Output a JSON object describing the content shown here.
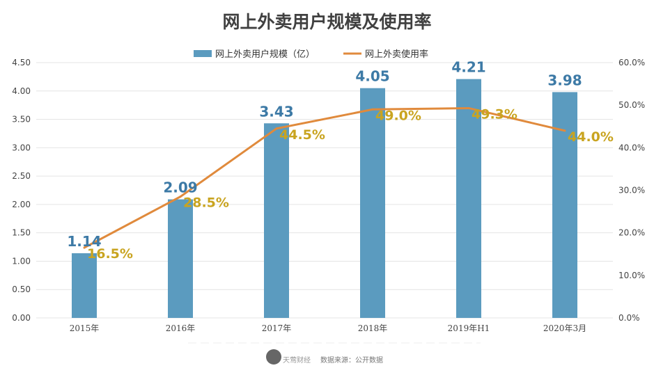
{
  "chart_data": {
    "type": "bar+line",
    "title": "网上外卖用户规模及使用率",
    "categories": [
      "2015年",
      "2016年",
      "2017年",
      "2018年",
      "2019年H1",
      "2020年3月"
    ],
    "series": [
      {
        "name": "网上外卖用户规模（亿）",
        "type": "bar",
        "axis": "left",
        "color": "#5b9bbf",
        "values": [
          1.14,
          2.09,
          3.43,
          4.05,
          4.21,
          3.98
        ],
        "labels": [
          "1.14",
          "2.09",
          "3.43",
          "4.05",
          "4.21",
          "3.98"
        ]
      },
      {
        "name": "网上外卖使用率",
        "type": "line",
        "axis": "right",
        "color": "#e08a3c",
        "values": [
          16.5,
          28.5,
          44.5,
          49.0,
          49.3,
          44.0
        ],
        "labels": [
          "16.5%",
          "28.5%",
          "44.5%",
          "49.0%",
          "49.3%",
          "44.0%"
        ]
      }
    ],
    "left_axis": {
      "range": [
        0,
        4.5
      ],
      "ticks": [
        "0.00",
        "0.50",
        "1.00",
        "1.50",
        "2.00",
        "2.50",
        "3.00",
        "3.50",
        "4.00",
        "4.50"
      ]
    },
    "right_axis": {
      "range": [
        0,
        60
      ],
      "ticks": [
        "0.0%",
        "10.0%",
        "20.0%",
        "30.0%",
        "40.0%",
        "50.0%",
        "60.0%"
      ]
    },
    "grid": true,
    "legend": "top"
  },
  "footer": {
    "brand": "天莺财经",
    "source": "数据来源：公开数据"
  }
}
